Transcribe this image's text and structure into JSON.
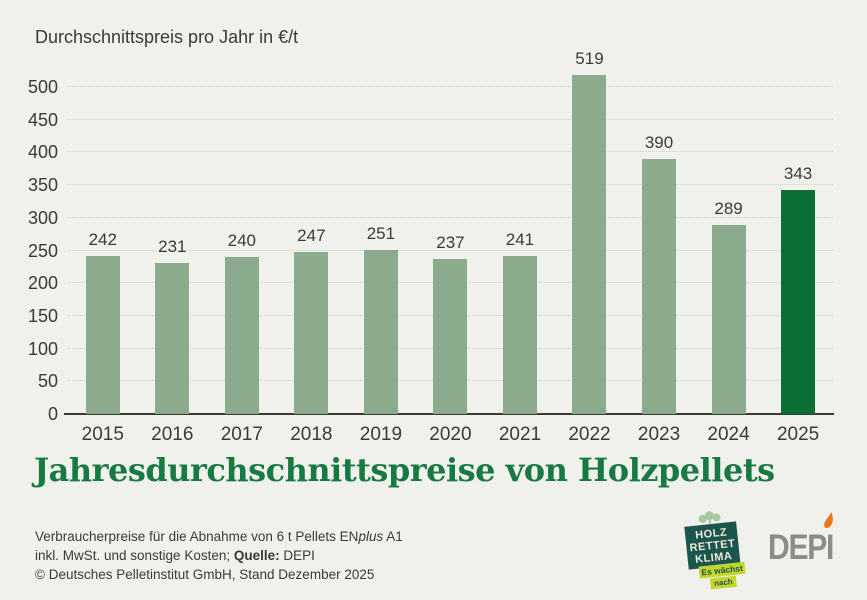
{
  "colors": {
    "background": "#f0f1ec",
    "bar": "#8bab8c",
    "bar_highlight": "#0b6f35",
    "axis": "#3a3a38",
    "grid": "#cfd2ca",
    "text": "#3a3a38",
    "title_green": "#177a42",
    "badge_teal": "#1a564e",
    "badge_cream": "#efe8d2",
    "ribbon_green": "#c5d62c",
    "depi_gray": "#8c8c8a",
    "depi_orange": "#e8781e",
    "sprout_green": "#a9c79d"
  },
  "axis_title": "Durchschnittspreis pro Jahr in €/t",
  "chart_data": {
    "type": "bar",
    "categories": [
      "2015",
      "2016",
      "2017",
      "2018",
      "2019",
      "2020",
      "2021",
      "2022",
      "2023",
      "2024",
      "2025"
    ],
    "values": [
      242,
      231,
      240,
      247,
      251,
      237,
      241,
      519,
      390,
      289,
      343
    ],
    "highlight_index": 10,
    "title": "Jahresdurchschnittspreise von Holzpellets",
    "ylabel": "Durchschnittspreis pro Jahr in €/t",
    "xlabel": "",
    "ylim": [
      0,
      540
    ],
    "ytick_max": 500,
    "ytick_step": 50,
    "grid": "horizontal-dotted",
    "legend": "none",
    "bar_labels_shown": true
  },
  "title": "Jahresdurchschnittspreise von Holzpellets",
  "footer": {
    "line1": {
      "pre": "Verbraucherpreise für die Abnahme von 6 t Pellets EN",
      "italic": "plus",
      "post": " A1"
    },
    "line2": {
      "pre": "inkl. MwSt. und sonstige Kosten; ",
      "bold": "Quelle:",
      "post": " DEPI"
    },
    "line3": "© Deutsches Pelletinstitut GmbH, Stand Dezember 2025"
  },
  "logos": {
    "klima_badge": {
      "lines": [
        "HOLZ",
        "RETTET",
        "KLIMA"
      ],
      "ribbon1": "Es wächst",
      "ribbon2": "nach"
    },
    "depi_text": "DEPI"
  }
}
